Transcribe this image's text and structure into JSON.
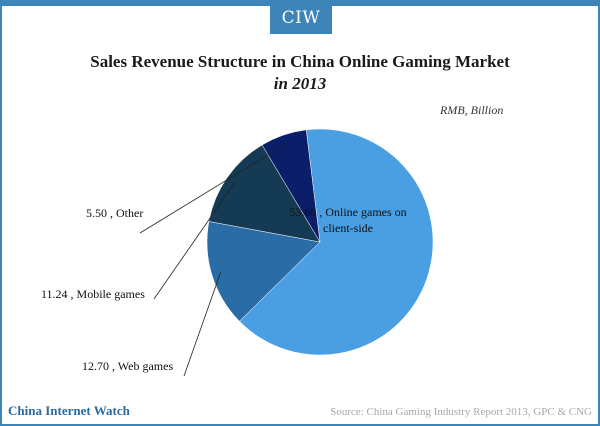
{
  "logo": "CIW",
  "header": {
    "title": "Sales Revenue Structure in China Online Gaming Market",
    "subtitle": "in 2013",
    "unit": "RMB, Billion"
  },
  "footer": {
    "brand": "China Internet Watch",
    "source": "Source: China Gaming Industry Report 2013, GPC & CNG"
  },
  "chart_data": {
    "type": "pie",
    "title": "Sales Revenue Structure in China Online Gaming Market in 2013",
    "unit": "RMB, Billion",
    "slices": [
      {
        "name": "Online games on client-side",
        "value": 53.66,
        "label": "53.66 , Online games on client-side",
        "color": "#4a9ee2"
      },
      {
        "name": "Web games",
        "value": 12.7,
        "label": "12.70 , Web games",
        "color": "#2a6ca6"
      },
      {
        "name": "Mobile games",
        "value": 11.24,
        "label": "11.24 , Mobile games",
        "color": "#143a54"
      },
      {
        "name": "Other",
        "value": 5.5,
        "label": "5.50 , Other",
        "color": "#0a1e6a"
      }
    ]
  }
}
